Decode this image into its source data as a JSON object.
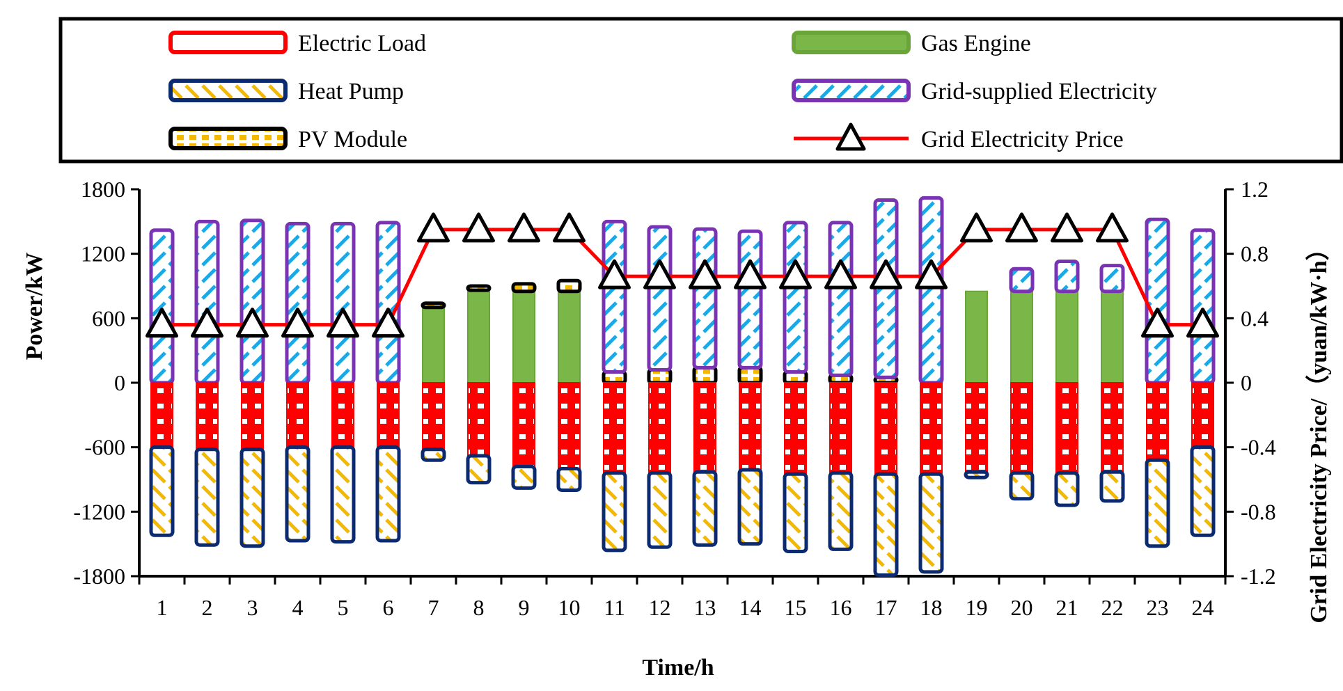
{
  "chart_data": {
    "type": "bar",
    "title": "",
    "xlabel": "Time/h",
    "ylabel": "Power/kW",
    "y2label": "Grid Electricity Price/（yuan/kW·h）",
    "ylim": [
      -1800,
      1800
    ],
    "y2lim": [
      -1.2,
      1.2
    ],
    "yticks": [
      -1800,
      -1200,
      -600,
      0,
      600,
      1200,
      1800
    ],
    "y2ticks": [
      "-1.2",
      "-0.8",
      "-0.4",
      "0",
      "0.4",
      "0.8",
      "1.2"
    ],
    "categories": [
      "1",
      "2",
      "3",
      "4",
      "5",
      "6",
      "7",
      "8",
      "9",
      "10",
      "11",
      "12",
      "13",
      "14",
      "15",
      "16",
      "17",
      "18",
      "19",
      "20",
      "21",
      "22",
      "23",
      "24"
    ],
    "legend": {
      "items": [
        {
          "key": "electric_load",
          "label": "Electric Load"
        },
        {
          "key": "gas_engine",
          "label": "Gas Engine"
        },
        {
          "key": "heat_pump",
          "label": "Heat Pump"
        },
        {
          "key": "grid_supplied",
          "label": "Grid-supplied Electricity"
        },
        {
          "key": "pv_module",
          "label": "PV Module"
        },
        {
          "key": "grid_price",
          "label": "Grid Electricity Price"
        }
      ]
    },
    "series": [
      {
        "key": "gas_engine",
        "name": "Gas Engine",
        "axis": "left",
        "color": "#7ab648",
        "values": [
          0,
          0,
          0,
          0,
          0,
          0,
          720,
          860,
          850,
          850,
          0,
          0,
          0,
          0,
          0,
          0,
          0,
          0,
          850,
          850,
          850,
          850,
          0,
          0
        ]
      },
      {
        "key": "pv_module",
        "name": "PV Module",
        "axis": "left",
        "color": "#f5c518",
        "values": [
          0,
          0,
          0,
          0,
          0,
          0,
          20,
          40,
          70,
          100,
          100,
          120,
          140,
          140,
          100,
          70,
          50,
          0,
          0,
          0,
          0,
          0,
          0,
          0
        ]
      },
      {
        "key": "grid_supplied",
        "name": "Grid-supplied Electricity",
        "axis": "left",
        "color": "#7a33b3",
        "values": [
          1420,
          1500,
          1510,
          1480,
          1480,
          1490,
          0,
          0,
          0,
          0,
          1400,
          1330,
          1290,
          1270,
          1390,
          1420,
          1650,
          1720,
          0,
          210,
          280,
          240,
          1520,
          1420
        ]
      },
      {
        "key": "electric_load",
        "name": "Electric Load",
        "axis": "left",
        "color": "#ff0000",
        "values": [
          -600,
          -620,
          -620,
          -600,
          -600,
          -600,
          -620,
          -680,
          -780,
          -800,
          -840,
          -840,
          -830,
          -810,
          -850,
          -840,
          -850,
          -850,
          -830,
          -840,
          -840,
          -830,
          -720,
          -600
        ]
      },
      {
        "key": "heat_pump",
        "name": "Heat Pump",
        "axis": "left",
        "color": "#0b2a6f",
        "values": [
          -820,
          -890,
          -900,
          -870,
          -880,
          -870,
          -100,
          -250,
          -200,
          -200,
          -720,
          -690,
          -680,
          -690,
          -720,
          -710,
          -940,
          -910,
          -50,
          -240,
          -300,
          -270,
          -800,
          -820
        ]
      },
      {
        "key": "grid_price",
        "name": "Grid Electricity Price",
        "type": "line",
        "axis": "right",
        "color": "#ff0000",
        "values": [
          0.36,
          0.36,
          0.36,
          0.36,
          0.36,
          0.36,
          0.95,
          0.95,
          0.95,
          0.95,
          0.66,
          0.66,
          0.66,
          0.66,
          0.66,
          0.66,
          0.66,
          0.66,
          0.95,
          0.95,
          0.95,
          0.95,
          0.36,
          0.36
        ]
      }
    ]
  }
}
